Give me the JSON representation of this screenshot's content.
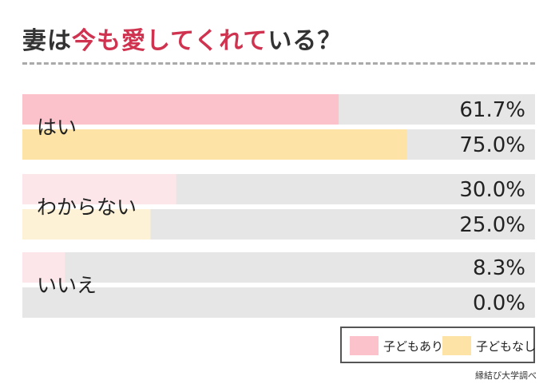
{
  "title": {
    "pre": "妻は",
    "highlight": "今も愛してくれて",
    "post": "いる？"
  },
  "source": "縁結び大学調べ",
  "colors": {
    "with_children": "#fcc2cc",
    "without_children": "#fde3a6",
    "with_children_light": "#fde6ea",
    "without_children_light": "#fdf1d6",
    "track": "#e6e6e6",
    "title_accent": "#d0334f"
  },
  "chart_data": {
    "type": "bar",
    "orientation": "horizontal",
    "categories": [
      "はい",
      "わからない",
      "いいえ"
    ],
    "series": [
      {
        "name": "子どもあり",
        "values": [
          61.7,
          30.0,
          8.3
        ],
        "labels": [
          "61.7%",
          "30.0%",
          "8.3%"
        ]
      },
      {
        "name": "子どもなし",
        "values": [
          75.0,
          25.0,
          0.0
        ],
        "labels": [
          "75.0%",
          "25.0%",
          "0.0%"
        ]
      }
    ],
    "xlim": [
      0,
      100
    ],
    "legend_position": "bottom-right",
    "grid": false
  }
}
